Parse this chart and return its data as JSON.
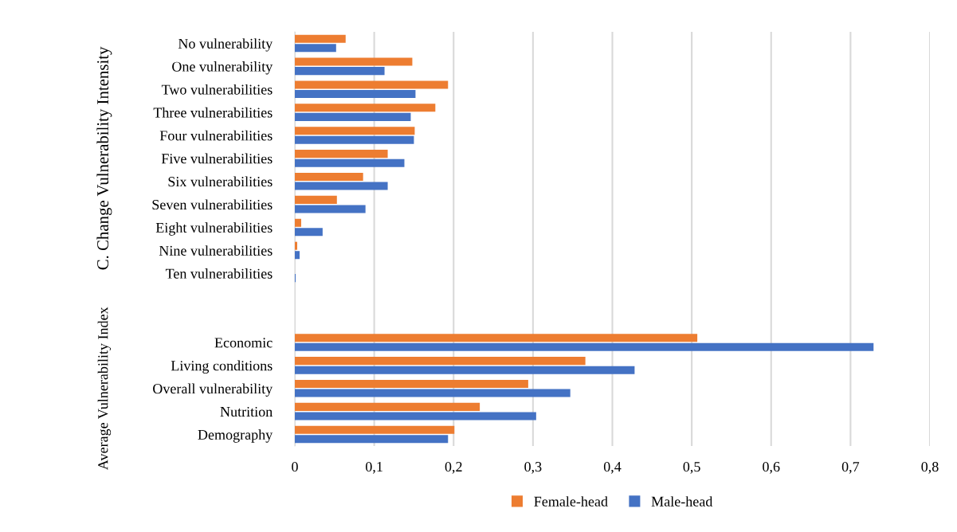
{
  "chart_data": {
    "type": "bar",
    "orientation": "horizontal",
    "categories": [
      "No vulnerability",
      "One vulnerability",
      "Two vulnerabilities",
      "Three vulnerabilities",
      "Four vulnerabilities",
      "Five vulnerabilities",
      "Six vulnerabilities",
      "Seven vulnerabilities",
      "Eight vulnerabilities",
      "Nine vulnerabilities",
      "Ten vulnerabilities",
      null,
      null,
      "Economic",
      "Living conditions",
      "Overall vulnerability",
      "Nutrition",
      "Demography"
    ],
    "series": [
      {
        "name": "Female-head",
        "color": "#ed7d31",
        "values": [
          0.064,
          0.148,
          0.193,
          0.177,
          0.151,
          0.117,
          0.086,
          0.053,
          0.008,
          0.003,
          0,
          null,
          null,
          0.507,
          0.366,
          0.294,
          0.233,
          0.201
        ]
      },
      {
        "name": "Male-head",
        "color": "#4472c4",
        "values": [
          0.052,
          0.113,
          0.152,
          0.146,
          0.15,
          0.138,
          0.117,
          0.089,
          0.035,
          0.006,
          0.001,
          null,
          null,
          0.729,
          0.428,
          0.347,
          0.304,
          0.193
        ]
      }
    ],
    "xlim": [
      0,
      0.8
    ],
    "xticks": [
      0,
      {
        "value": 0.1,
        "label": "0,1"
      },
      {
        "value": 0.2,
        "label": "0,2"
      },
      {
        "value": 0.3,
        "label": "0,3"
      },
      {
        "value": 0.4,
        "label": "0,4"
      },
      {
        "value": 0.5,
        "label": "0,5"
      },
      {
        "value": 0.6,
        "label": "0,6"
      },
      {
        "value": 0.7,
        "label": "0,7"
      },
      {
        "value": 0.8,
        "label": "0,8"
      }
    ],
    "annotations": [
      "C. Change Vulnerability Intensity",
      "Average Vulnerability Index"
    ],
    "grid": "x",
    "legend": "bottom"
  }
}
